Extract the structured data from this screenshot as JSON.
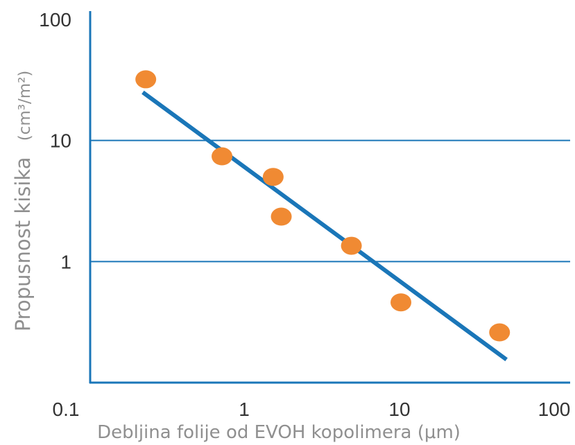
{
  "chart_data": {
    "type": "scatter",
    "xlabel": "Debljina folije od EVOH kopolimera (μm)",
    "ylabel": "Propusnost kisika",
    "ylabel_unit": "(cm³/m²)",
    "x_scale": "log",
    "y_scale": "log",
    "xlim": [
      0.1,
      100
    ],
    "ylim": [
      0.1,
      100
    ],
    "x_tick_labels": [
      "0.1",
      "1",
      "10",
      "100"
    ],
    "y_tick_labels": [
      "100",
      "10",
      "1"
    ],
    "y_ticks": [
      100,
      10,
      1
    ],
    "grid": "horizontal lines at 1 and 10",
    "points": [
      {
        "x": 0.23,
        "y": 32
      },
      {
        "x": 0.72,
        "y": 7.4
      },
      {
        "x": 1.55,
        "y": 5.0
      },
      {
        "x": 1.75,
        "y": 2.35
      },
      {
        "x": 5.0,
        "y": 1.35
      },
      {
        "x": 10.5,
        "y": 0.46
      },
      {
        "x": 46,
        "y": 0.26
      }
    ],
    "trend_line": {
      "x": [
        0.22,
        51
      ],
      "y": [
        25,
        0.155
      ]
    },
    "colors": {
      "points": "#f08a33",
      "trend_line": "#1a76b8",
      "axes": "#1a76b8",
      "grid": "#1a76b8"
    }
  }
}
